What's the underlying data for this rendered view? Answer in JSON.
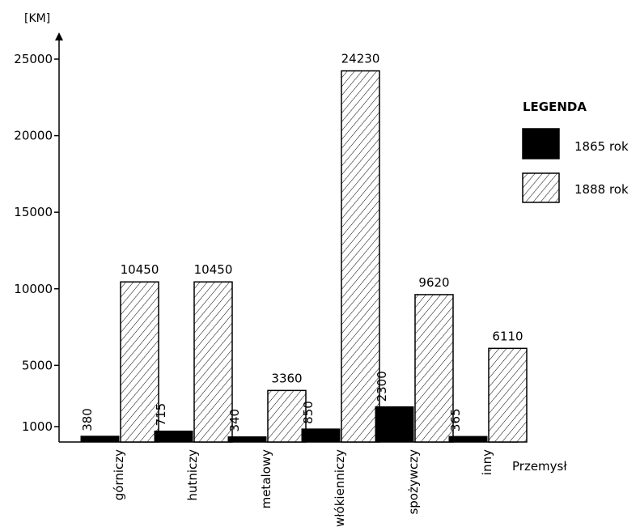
{
  "chart_data": {
    "type": "bar",
    "y_unit_label": "[KM]",
    "xlabel": "Przemysł",
    "categories": [
      "górniczy",
      "hutniczy",
      "metalowy",
      "włókienniczy",
      "spożywczy",
      "inny"
    ],
    "series": [
      {
        "name": "1865 rok",
        "values": [
          380,
          715,
          340,
          850,
          2300,
          365
        ],
        "fill": "solid",
        "color": "#000000"
      },
      {
        "name": "1888 rok",
        "values": [
          10450,
          10450,
          3360,
          24230,
          9620,
          6110
        ],
        "fill": "hatched",
        "color": "#ffffff"
      }
    ],
    "data_labels": [
      [
        "380",
        "715",
        "340",
        "850",
        "2300",
        "365"
      ],
      [
        "10450",
        "10450",
        "3360",
        "24230",
        "9620",
        "6110"
      ]
    ],
    "y_ticks": [
      {
        "value": 1000,
        "label": "1000"
      },
      {
        "value": 5000,
        "label": "5000"
      },
      {
        "value": 10000,
        "label": "10000"
      },
      {
        "value": 15000,
        "label": "15000"
      },
      {
        "value": 20000,
        "label": "20000"
      },
      {
        "value": 25000,
        "label": "25000"
      }
    ],
    "ylim": [
      0,
      26000
    ],
    "grid": false,
    "legend": {
      "title": "LEGENDA",
      "placement": "right"
    }
  }
}
